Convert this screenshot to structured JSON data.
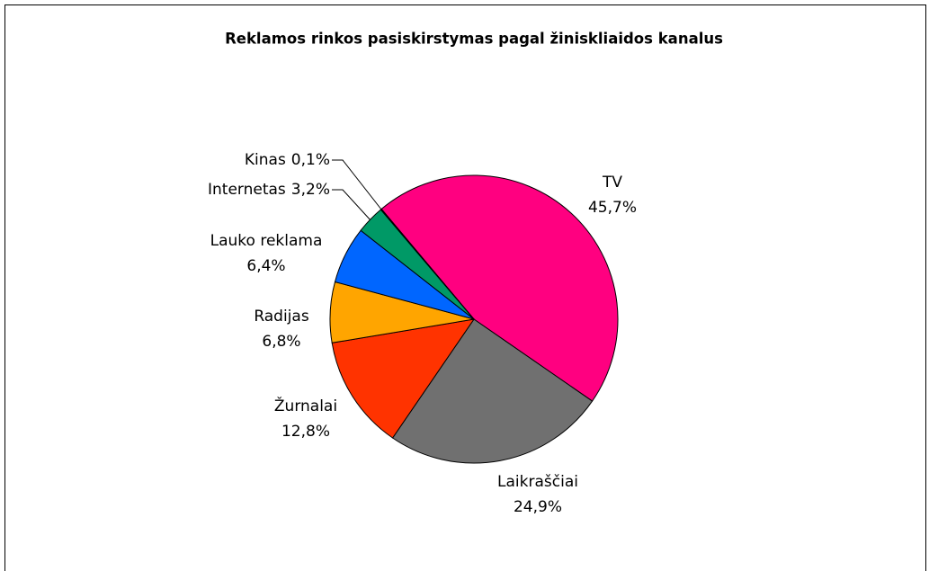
{
  "chart_data": {
    "type": "pie",
    "title": "Reklamos rinkos pasiskirstymas pagal žiniskliaidos kanalus",
    "categories": [
      "TV",
      "Laikraščiai",
      "Žurnalai",
      "Radijas",
      "Lauko reklama",
      "Internetas",
      "Kinas"
    ],
    "values": [
      45.7,
      24.9,
      12.8,
      6.8,
      6.4,
      3.2,
      0.1
    ],
    "value_labels": [
      "45,7%",
      "24,9%",
      "12,8%",
      "6,8%",
      "6,4%",
      "3,2%",
      "0,1%"
    ],
    "colors": [
      "#ff0080",
      "#707070",
      "#ff3300",
      "#ffa500",
      "#0066ff",
      "#009966",
      "#ffff99"
    ]
  }
}
